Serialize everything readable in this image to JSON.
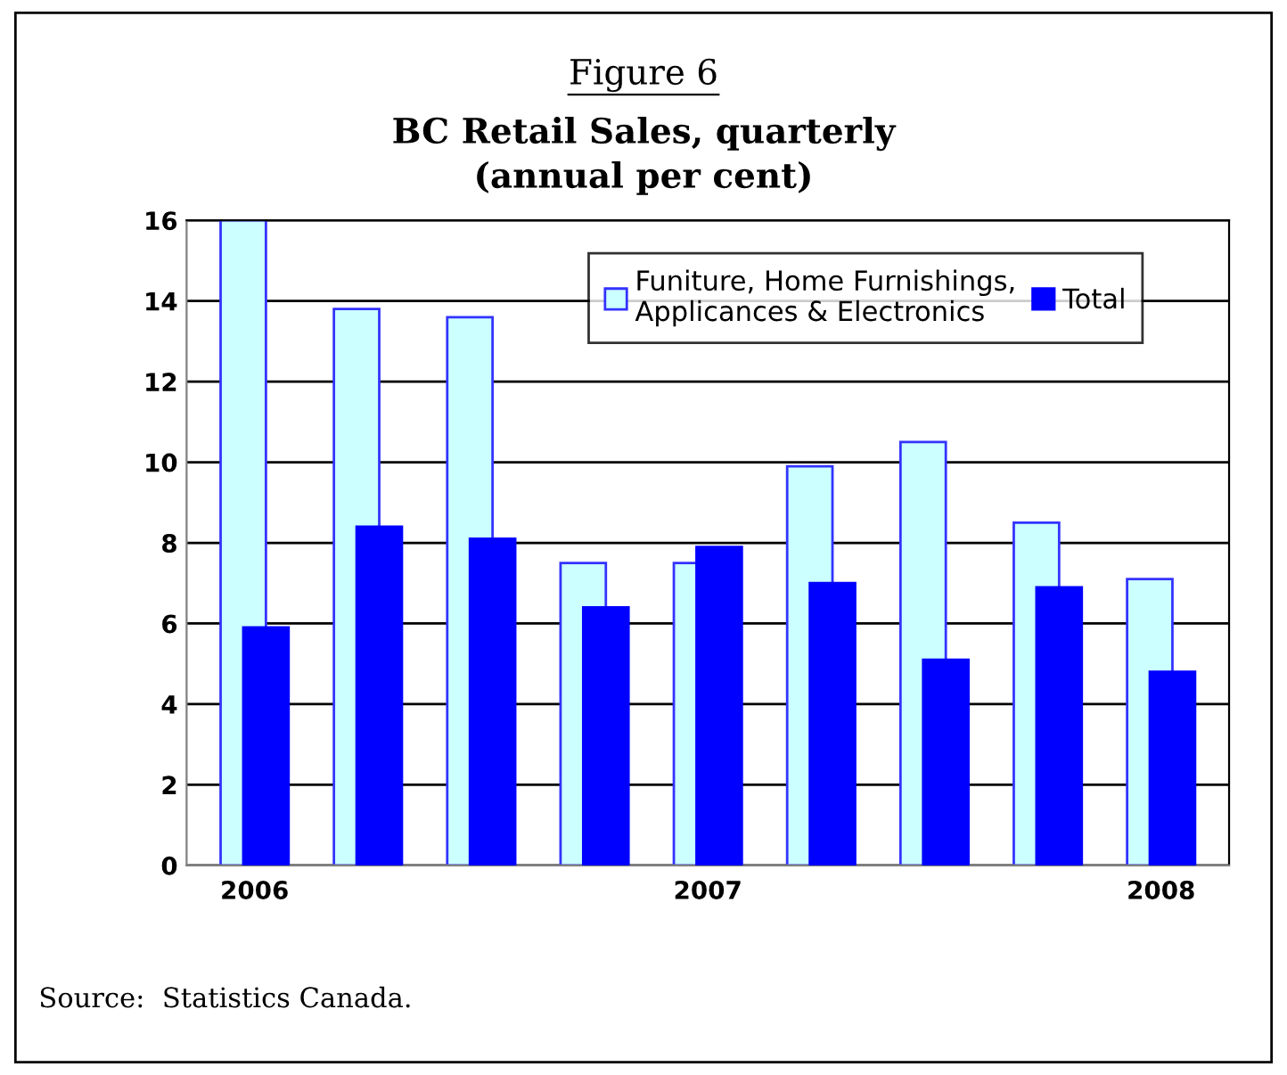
{
  "chart_data": {
    "type": "bar",
    "title": "Figure 6",
    "subtitle": "BC Retail Sales, quarterly\n(annual per cent)",
    "categories": [
      "2006",
      null,
      null,
      null,
      "2007",
      null,
      null,
      null,
      "2008"
    ],
    "series": [
      {
        "name": "Funiture, Home Furnishings,\nApplicances & Electronics",
        "color": "#ccffff",
        "values": [
          16,
          13.8,
          13.6,
          7.5,
          7.5,
          9.9,
          10.5,
          8.5,
          7.1
        ]
      },
      {
        "name": "Total",
        "color": "#0000ff",
        "values": [
          5.9,
          8.4,
          8.1,
          6.4,
          7.9,
          7.0,
          5.1,
          6.9,
          4.8
        ]
      }
    ],
    "ylim": [
      0,
      16
    ],
    "yticks": [
      0,
      2,
      4,
      6,
      8,
      10,
      12,
      14,
      16
    ],
    "grid": "y",
    "legend": "top right",
    "annotations": [
      "Source:  Statistics Canada."
    ]
  }
}
